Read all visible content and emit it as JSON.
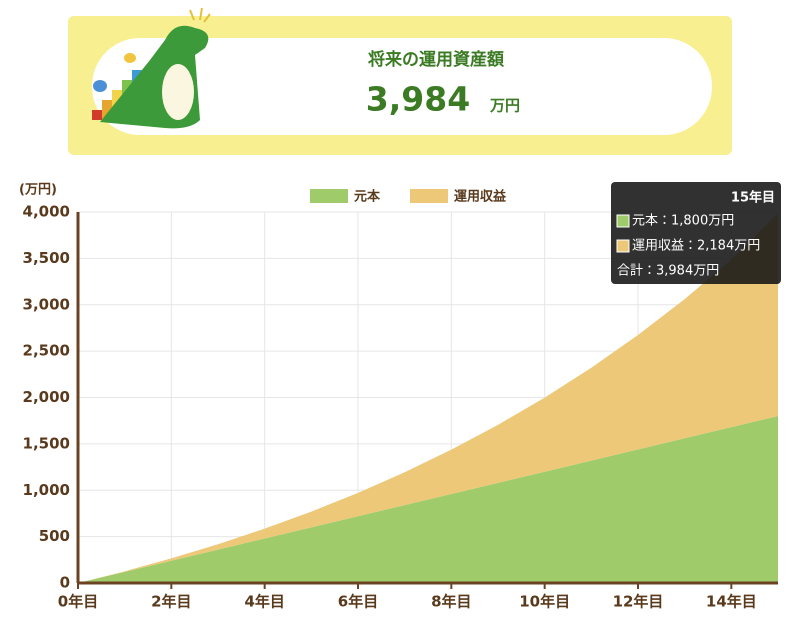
{
  "header": {
    "title": "将来の運用資産額",
    "value": "3,984",
    "unit": "万円"
  },
  "chart_data": {
    "type": "stacked_area",
    "y_label": "(万円)",
    "x": [
      0,
      1,
      2,
      3,
      4,
      5,
      6,
      7,
      8,
      9,
      10,
      11,
      12,
      13,
      14,
      15
    ],
    "series": [
      {
        "name": "元本",
        "color": "#a0cb6a",
        "values": [
          0,
          120,
          240,
          360,
          480,
          600,
          720,
          840,
          960,
          1080,
          1200,
          1320,
          1440,
          1560,
          1680,
          1800
        ]
      },
      {
        "name": "運用収益",
        "color": "#ecc878",
        "values": [
          0,
          6,
          25,
          58,
          106,
          170,
          252,
          354,
          478,
          625,
          799,
          1001,
          1234,
          1501,
          1806,
          2184
        ]
      }
    ],
    "xlim": [
      0,
      15
    ],
    "xticks": [
      {
        "value": 0,
        "label": "0年目"
      },
      {
        "value": 2,
        "label": "2年目"
      },
      {
        "value": 4,
        "label": "4年目"
      },
      {
        "value": 6,
        "label": "6年目"
      },
      {
        "value": 8,
        "label": "8年目"
      },
      {
        "value": 10,
        "label": "10年目"
      },
      {
        "value": 12,
        "label": "12年目"
      },
      {
        "value": 14,
        "label": "14年目"
      }
    ],
    "ylim": [
      0,
      4000
    ],
    "yticks": [
      0,
      500,
      {
        "value": 1000,
        "label": "1,000"
      },
      {
        "value": 1500,
        "label": "1,500"
      },
      {
        "value": 2000,
        "label": "2,000"
      },
      {
        "value": 2500,
        "label": "2,500"
      },
      {
        "value": 3000,
        "label": "3,000"
      },
      {
        "value": 3500,
        "label": "3,500"
      },
      {
        "value": 4000,
        "label": "4,000"
      }
    ],
    "grid": true,
    "legend": "top",
    "tooltip": {
      "title": "15年目",
      "lines": [
        "元本：1,800万円",
        "運用収益：2,184万円",
        "合計：3,984万円"
      ]
    }
  }
}
